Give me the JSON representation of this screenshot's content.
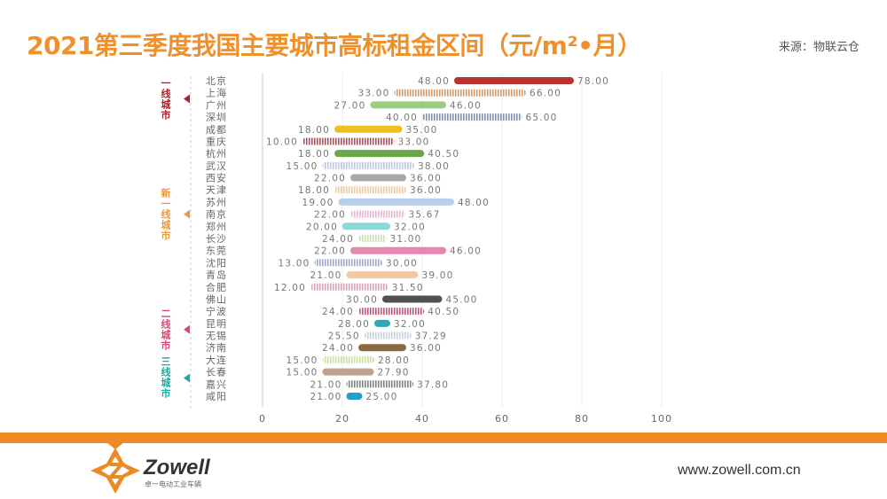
{
  "title": "2021第三季度我国主要城市高标租金区间（元/m²•月）",
  "source": "来源：物联云仓",
  "footer": {
    "brand": "Zowell",
    "brand_sub": "卓一电动工业车辆",
    "url": "www.zowell.com.cn",
    "accent": "#ee8a24"
  },
  "chart_data": {
    "type": "bar",
    "orientation": "horizontal-range",
    "title": "2021第三季度我国主要城市高标租金区间（元/m²•月）",
    "xlim": [
      0,
      100
    ],
    "xticks": [
      0,
      20,
      40,
      60,
      80,
      100
    ],
    "grid": true,
    "groups": [
      {
        "label": "一线城市",
        "color": "#b01e2a",
        "cities": [
          "北京",
          "上海",
          "广州",
          "深圳"
        ]
      },
      {
        "label": "新一线城市",
        "color": "#e89a40",
        "cities": [
          "成都",
          "重庆",
          "杭州",
          "武汉",
          "西安",
          "天津",
          "苏州",
          "南京",
          "郑州",
          "长沙",
          "东莞",
          "沈阳",
          "青岛",
          "合肥",
          "佛山"
        ]
      },
      {
        "label": "二线城市",
        "color": "#d84870",
        "cities": [
          "宁波",
          "昆明",
          "无锡",
          "济南"
        ]
      },
      {
        "label": "三线城市",
        "color": "#20a8a0",
        "cities": [
          "大连",
          "长春",
          "嘉兴",
          "咸阳"
        ]
      }
    ],
    "categories": [
      "北京",
      "上海",
      "广州",
      "深圳",
      "成都",
      "重庆",
      "杭州",
      "武汉",
      "西安",
      "天津",
      "苏州",
      "南京",
      "郑州",
      "长沙",
      "东莞",
      "沈阳",
      "青岛",
      "合肥",
      "佛山",
      "宁波",
      "昆明",
      "无锡",
      "济南",
      "大连",
      "长春",
      "嘉兴",
      "咸阳"
    ],
    "low": [
      "48.00",
      "33.00",
      "27.00",
      "40.00",
      "18.00",
      "10.00",
      "18.00",
      "15.00",
      "22.00",
      "18.00",
      "19.00",
      "22.00",
      "20.00",
      "24.00",
      "22.00",
      "13.00",
      "21.00",
      "12.00",
      "30.00",
      "24.00",
      "28.00",
      "25.50",
      "24.00",
      "15.00",
      "15.00",
      "21.00",
      "21.00"
    ],
    "high": [
      "78.00",
      "66.00",
      "46.00",
      "65.00",
      "35.00",
      "33.00",
      "40.50",
      "38.00",
      "36.00",
      "36.00",
      "48.00",
      "35.67",
      "32.00",
      "31.00",
      "46.00",
      "30.00",
      "39.00",
      "31.50",
      "45.00",
      "40.50",
      "32.00",
      "37.29",
      "36.00",
      "28.00",
      "27.90",
      "37.80",
      "25.00"
    ],
    "colors": [
      "#b83232",
      "#d89a68",
      "#9ccc80",
      "#7f90b8",
      "#f0c020",
      "#b05058",
      "#6aa84a",
      "#b8c8e0",
      "#a8a8a8",
      "#f0c8a0",
      "#b8d0ec",
      "#f0b8d0",
      "#8cd8d8",
      "#c8e0b0",
      "#e488b0",
      "#a0a8d0",
      "#f4c8a0",
      "#e0a0b8",
      "#505050",
      "#c85878",
      "#30a8b8",
      "#c8d0e0",
      "#8c6a40",
      "#c8e0a0",
      "#c0a090",
      "#808080",
      "#20a0d0"
    ],
    "striped": [
      false,
      true,
      false,
      true,
      false,
      true,
      false,
      true,
      false,
      true,
      false,
      true,
      false,
      true,
      false,
      true,
      false,
      true,
      false,
      true,
      false,
      true,
      false,
      true,
      false,
      true,
      false
    ]
  }
}
